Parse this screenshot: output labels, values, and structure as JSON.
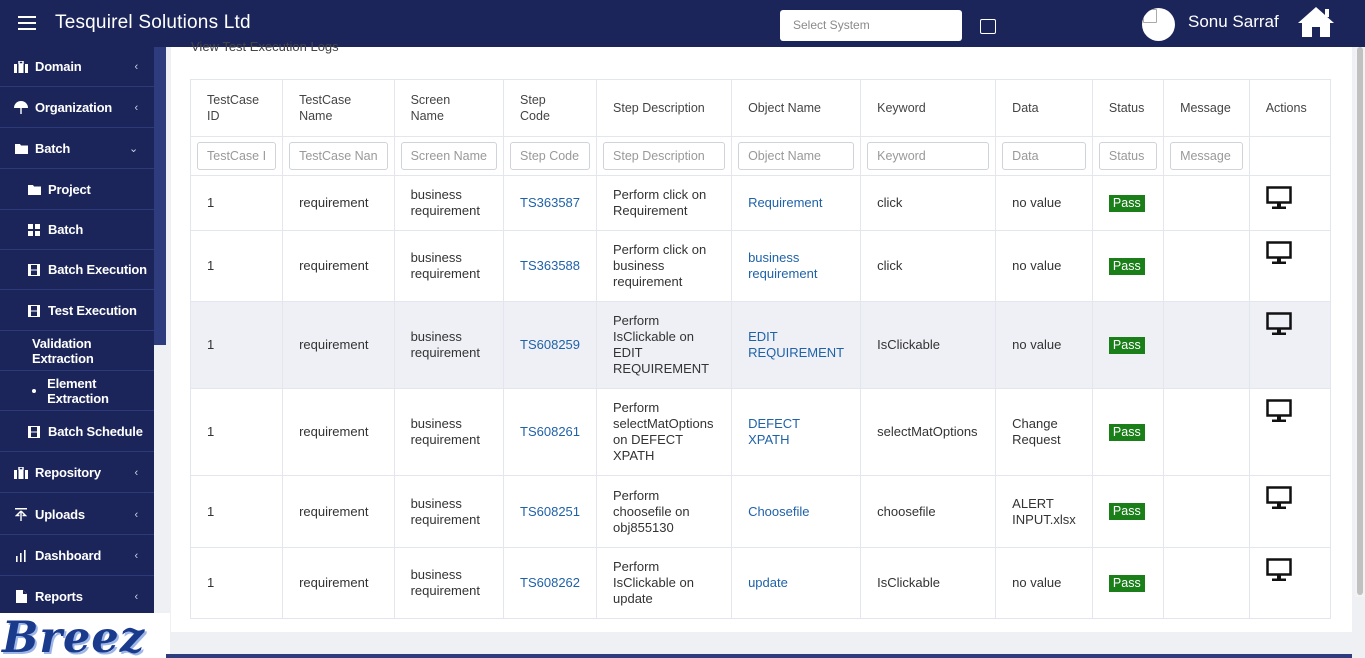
{
  "header": {
    "title": "Tesquirel Solutions Ltd",
    "select_system_placeholder": "Select System",
    "user_name": "Sonu Sarraf"
  },
  "sidebar": {
    "items": [
      {
        "label": "Domain",
        "icon": "briefcase-icon",
        "has_chevron": true,
        "chevron": "‹"
      },
      {
        "label": "Organization",
        "icon": "umbrella-icon",
        "has_chevron": true,
        "chevron": "‹"
      },
      {
        "label": "Batch",
        "icon": "folder-icon",
        "has_chevron": true,
        "chevron": "⌄"
      },
      {
        "label": "Project",
        "icon": "folder-icon",
        "sub": true
      },
      {
        "label": "Batch",
        "icon": "grid-icon",
        "sub": true
      },
      {
        "label": "Batch Execution",
        "icon": "film-icon",
        "sub": true
      },
      {
        "label": "Test Execution",
        "icon": "film-icon",
        "sub": true
      },
      {
        "label": "Validation Extraction",
        "icon": "",
        "sub": true
      },
      {
        "label": "Element Extraction",
        "icon": "dot-icon",
        "sub": true
      },
      {
        "label": "Batch Schedule",
        "icon": "film-icon",
        "sub": true
      },
      {
        "label": "Repository",
        "icon": "briefcase-icon",
        "has_chevron": true,
        "chevron": "‹"
      },
      {
        "label": "Uploads",
        "icon": "upload-icon",
        "has_chevron": true,
        "chevron": "‹"
      },
      {
        "label": "Dashboard",
        "icon": "bar-chart-icon",
        "has_chevron": true,
        "chevron": "‹"
      },
      {
        "label": "Reports",
        "icon": "file-icon",
        "has_chevron": true,
        "chevron": "‹"
      }
    ],
    "logo_text": "Breez"
  },
  "panel": {
    "title": "View Test Execution Logs"
  },
  "table": {
    "columns": [
      {
        "label": "TestCase ID",
        "lines": [
          "TestCase",
          "ID"
        ],
        "filter": "TestCase I"
      },
      {
        "label": "TestCase Name",
        "lines": [
          "TestCase",
          "Name"
        ],
        "filter": "TestCase Nan"
      },
      {
        "label": "Screen Name",
        "lines": [
          "Screen",
          "Name"
        ],
        "filter": "Screen Name"
      },
      {
        "label": "Step Code",
        "lines": [
          "Step",
          "Code"
        ],
        "filter": "Step Code"
      },
      {
        "label": "Step Description",
        "lines": [
          "Step Description"
        ],
        "filter": "Step Description"
      },
      {
        "label": "Object Name",
        "lines": [
          "Object Name"
        ],
        "filter": "Object Name"
      },
      {
        "label": "Keyword",
        "lines": [
          "Keyword"
        ],
        "filter": "Keyword"
      },
      {
        "label": "Data",
        "lines": [
          "Data"
        ],
        "filter": "Data"
      },
      {
        "label": "Status",
        "lines": [
          "Status"
        ],
        "filter": "Status"
      },
      {
        "label": "Message",
        "lines": [
          "Message"
        ],
        "filter": "Message"
      },
      {
        "label": "Actions",
        "lines": [
          "Actions"
        ],
        "filter": null
      }
    ],
    "rows": [
      {
        "id": "1",
        "name": "requirement",
        "screen": [
          "business",
          "requirement"
        ],
        "step_code": "TS363587",
        "desc": [
          "Perform click on",
          "Requirement"
        ],
        "object": [
          "Requirement"
        ],
        "keyword": "click",
        "data": [
          "no value"
        ],
        "status": "Pass",
        "message": ""
      },
      {
        "id": "1",
        "name": "requirement",
        "screen": [
          "business",
          "requirement"
        ],
        "step_code": "TS363588",
        "desc": [
          "Perform click on",
          "business",
          "requirement"
        ],
        "object": [
          "business",
          "requirement"
        ],
        "keyword": "click",
        "data": [
          "no value"
        ],
        "status": "Pass",
        "message": ""
      },
      {
        "id": "1",
        "name": "requirement",
        "screen": [
          "business",
          "requirement"
        ],
        "step_code": "TS608259",
        "desc": [
          "Perform",
          "IsClickable on",
          "EDIT",
          "REQUIREMENT"
        ],
        "object": [
          "EDIT",
          "REQUIREMENT"
        ],
        "keyword": "IsClickable",
        "data": [
          "no value"
        ],
        "status": "Pass",
        "message": ""
      },
      {
        "id": "1",
        "name": "requirement",
        "screen": [
          "business",
          "requirement"
        ],
        "step_code": "TS608261",
        "desc": [
          "Perform",
          "selectMatOptions",
          "on DEFECT",
          "XPATH"
        ],
        "object": [
          "DEFECT",
          "XPATH"
        ],
        "keyword": "selectMatOptions",
        "data": [
          "Change",
          "Request"
        ],
        "status": "Pass",
        "message": ""
      },
      {
        "id": "1",
        "name": "requirement",
        "screen": [
          "business",
          "requirement"
        ],
        "step_code": "TS608251",
        "desc": [
          "Perform",
          "choosefile on",
          "obj855130"
        ],
        "object": [
          "Choosefile"
        ],
        "keyword": "choosefile",
        "data": [
          "ALERT",
          "INPUT.xlsx"
        ],
        "status": "Pass",
        "message": ""
      },
      {
        "id": "1",
        "name": "requirement",
        "screen": [
          "business",
          "requirement"
        ],
        "step_code": "TS608262",
        "desc": [
          "Perform",
          "IsClickable on",
          "update"
        ],
        "object": [
          "update"
        ],
        "keyword": "IsClickable",
        "data": [
          "no value"
        ],
        "status": "Pass",
        "message": ""
      }
    ]
  },
  "colors": {
    "navy": "#1b2559",
    "link": "#1f62a8",
    "pass": "#1b7f19",
    "row_highlight": "#eef0f5"
  }
}
